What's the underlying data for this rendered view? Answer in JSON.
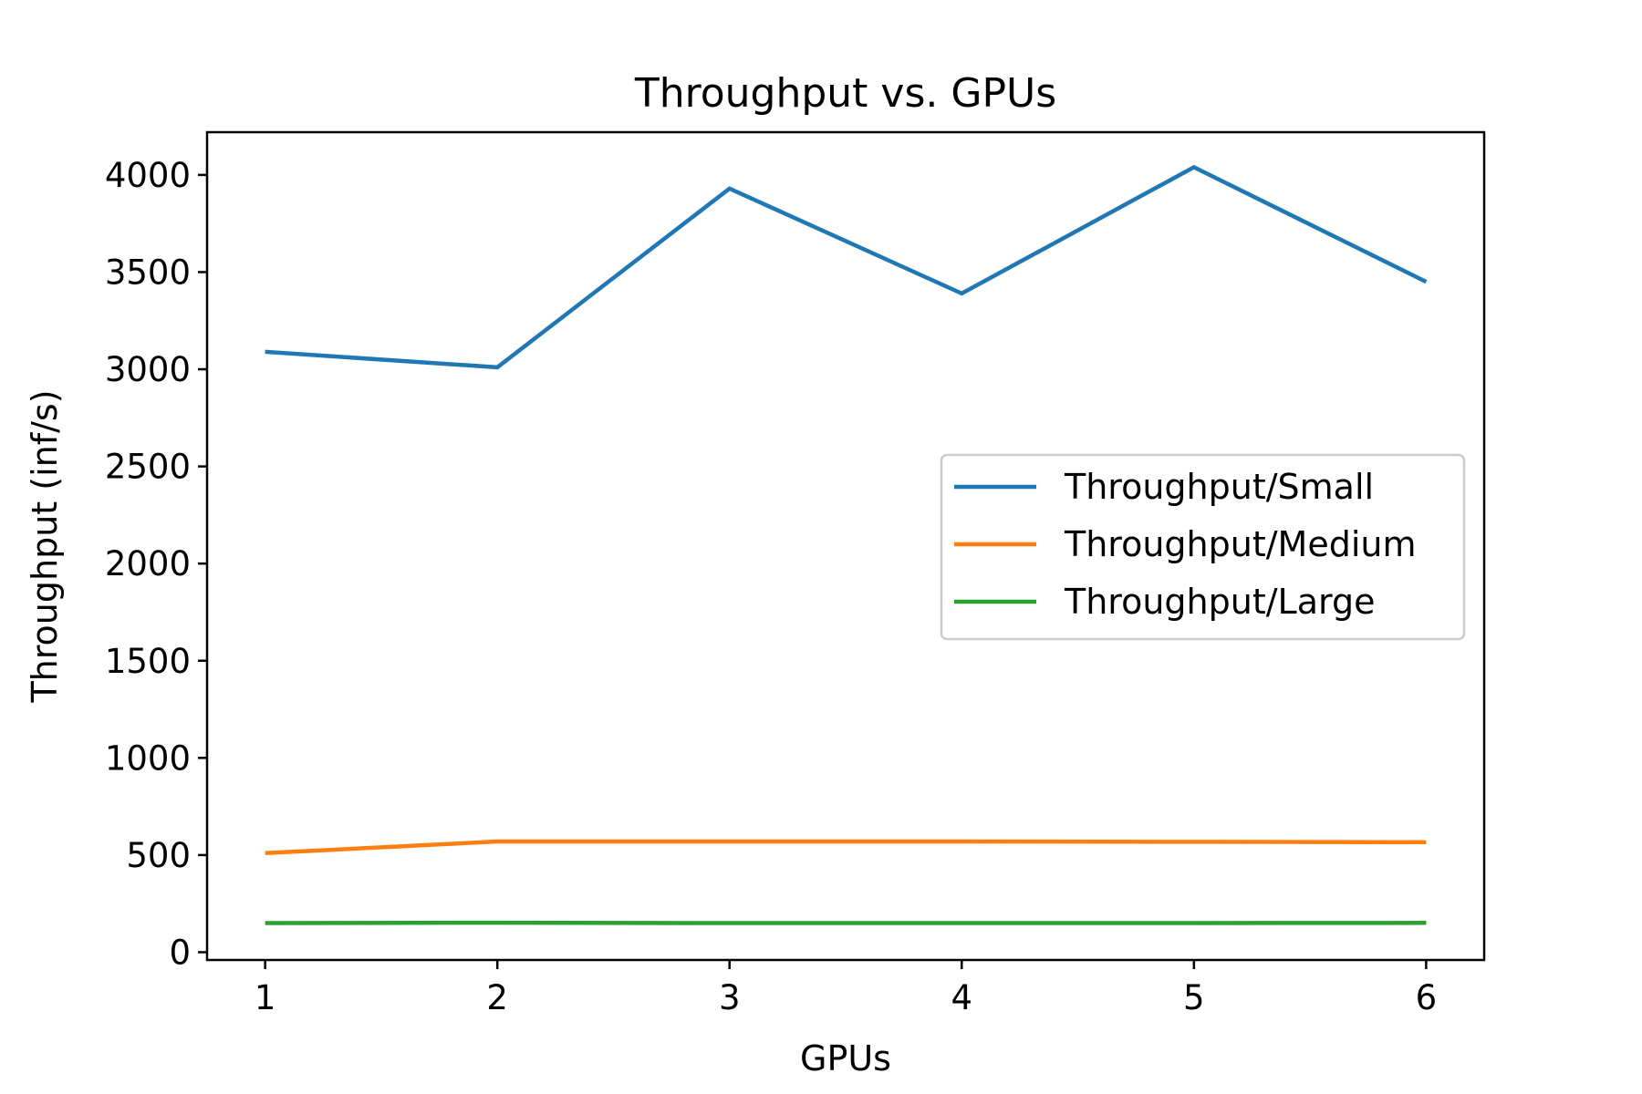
{
  "chart_data": {
    "type": "line",
    "title": "Throughput vs. GPUs",
    "xlabel": "GPUs",
    "ylabel": "Throughput (inf/s)",
    "x": [
      1,
      2,
      3,
      4,
      5,
      6
    ],
    "xlim": [
      0.75,
      6.25
    ],
    "ylim": [
      -40,
      4220
    ],
    "x_ticks": [
      "1",
      "2",
      "3",
      "4",
      "5",
      "6"
    ],
    "y_ticks": [
      "0",
      "500",
      "1000",
      "1500",
      "2000",
      "2500",
      "3000",
      "3500",
      "4000"
    ],
    "grid": false,
    "legend_position": "center-right",
    "series": [
      {
        "name": "Throughput/Small",
        "color": "#1f77b4",
        "values": [
          3090,
          3010,
          3930,
          3390,
          4040,
          3450
        ]
      },
      {
        "name": "Throughput/Medium",
        "color": "#ff7f0e",
        "values": [
          510,
          570,
          570,
          570,
          568,
          566
        ]
      },
      {
        "name": "Throughput/Large",
        "color": "#2ca02c",
        "values": [
          150,
          152,
          150,
          150,
          150,
          151
        ]
      }
    ]
  }
}
